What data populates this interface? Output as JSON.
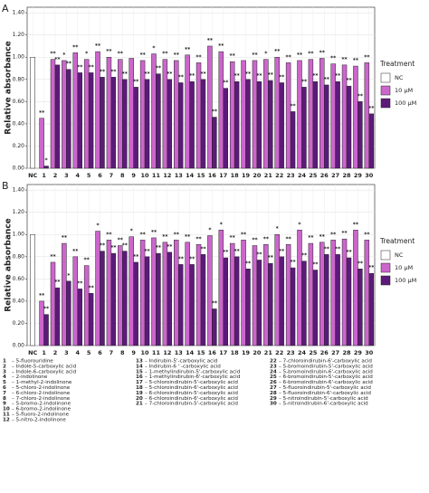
{
  "chart_data": [
    {
      "type": "bar",
      "panel": "A",
      "ylabel": "Relative absorbance",
      "legend_title": "Treatment",
      "grid": true,
      "categories": [
        "NC",
        "1",
        "2",
        "3",
        "4",
        "5",
        "6",
        "7",
        "8",
        "9",
        "10",
        "11",
        "12",
        "13",
        "14",
        "15",
        "16",
        "17",
        "18",
        "19",
        "20",
        "21",
        "22",
        "23",
        "24",
        "25",
        "26",
        "27",
        "28",
        "29",
        "30"
      ],
      "ylim": [
        0,
        1.45
      ],
      "yticks": [
        {
          "value": 0,
          "label": "0.00"
        },
        {
          "value": 0.2,
          "label": "0.20"
        },
        {
          "value": 0.4,
          "label": "0.40"
        },
        {
          "value": 0.6,
          "label": "0.60"
        },
        {
          "value": 0.8,
          "label": "0.80"
        },
        {
          "value": 1,
          "label": "1.00"
        },
        {
          "value": 1.2,
          "label": "1.20"
        },
        {
          "value": 1.4,
          "label": "1.40"
        }
      ],
      "series": [
        {
          "name": "NC",
          "color": "#ffffff",
          "values": [
            1.0,
            null,
            null,
            null,
            null,
            null,
            null,
            null,
            null,
            null,
            null,
            null,
            null,
            null,
            null,
            null,
            null,
            null,
            null,
            null,
            null,
            null,
            null,
            null,
            null,
            null,
            null,
            null,
            null,
            null,
            null
          ]
        },
        {
          "name": "10 µM",
          "color": "#cc66cc",
          "values": [
            null,
            0.45,
            0.98,
            0.97,
            1.04,
            0.98,
            1.05,
            1.0,
            0.98,
            0.99,
            0.97,
            1.03,
            0.98,
            0.97,
            1.02,
            0.95,
            1.1,
            1.05,
            0.96,
            0.97,
            0.97,
            0.98,
            1.0,
            0.95,
            0.97,
            0.98,
            0.99,
            0.94,
            0.93,
            0.92,
            0.95
          ],
          "significance": [
            null,
            "**",
            "**",
            "*",
            "**",
            "*",
            "**",
            "**",
            "**",
            null,
            "**",
            "*",
            "**",
            "**",
            "**",
            "**",
            "**",
            "**",
            "**",
            null,
            "**",
            "*",
            "**",
            "**",
            "**",
            "**",
            "**",
            "**",
            "**",
            "**",
            "**"
          ]
        },
        {
          "name": "100 µM",
          "color": "#5c1a7a",
          "values": [
            null,
            0.02,
            0.93,
            0.89,
            0.86,
            0.86,
            0.82,
            0.82,
            0.8,
            0.73,
            0.8,
            0.85,
            0.8,
            0.77,
            0.78,
            0.8,
            0.46,
            0.72,
            0.78,
            0.8,
            0.78,
            0.79,
            0.77,
            0.51,
            0.73,
            0.78,
            0.75,
            0.78,
            0.74,
            0.6,
            0.49
          ],
          "significance": [
            null,
            "*",
            "**",
            "**",
            "**",
            "**",
            "**",
            "**",
            "**",
            "**",
            "**",
            "**",
            "**",
            "**",
            "**",
            "**",
            "**",
            "**",
            "**",
            "**",
            "**",
            "**",
            "**",
            "**",
            "**",
            "**",
            "**",
            "**",
            "**",
            "**",
            "**"
          ]
        }
      ]
    },
    {
      "type": "bar",
      "panel": "B",
      "ylabel": "Relative absorbance",
      "legend_title": "Treatment",
      "grid": true,
      "categories": [
        "NC",
        "1",
        "2",
        "3",
        "4",
        "5",
        "6",
        "7",
        "8",
        "9",
        "10",
        "11",
        "12",
        "13",
        "14",
        "15",
        "16",
        "17",
        "18",
        "19",
        "20",
        "21",
        "22",
        "23",
        "24",
        "25",
        "26",
        "27",
        "28",
        "29",
        "30"
      ],
      "ylim": [
        0,
        1.45
      ],
      "yticks": [
        {
          "value": 0,
          "label": "0.00"
        },
        {
          "value": 0.2,
          "label": "0.20"
        },
        {
          "value": 0.4,
          "label": "0.40"
        },
        {
          "value": 0.6,
          "label": "0.60"
        },
        {
          "value": 0.8,
          "label": "0.80"
        },
        {
          "value": 1,
          "label": "1.00"
        },
        {
          "value": 1.2,
          "label": "1.20"
        },
        {
          "value": 1.4,
          "label": "1.40"
        }
      ],
      "series": [
        {
          "name": "NC",
          "color": "#ffffff",
          "values": [
            1.0,
            null,
            null,
            null,
            null,
            null,
            null,
            null,
            null,
            null,
            null,
            null,
            null,
            null,
            null,
            null,
            null,
            null,
            null,
            null,
            null,
            null,
            null,
            null,
            null,
            null,
            null,
            null,
            null,
            null,
            null
          ]
        },
        {
          "name": "10 µM",
          "color": "#cc66cc",
          "values": [
            null,
            0.4,
            0.75,
            0.92,
            0.8,
            0.72,
            1.03,
            0.95,
            0.9,
            0.98,
            0.95,
            0.97,
            0.93,
            0.95,
            0.93,
            0.91,
            0.99,
            1.04,
            0.92,
            0.95,
            0.9,
            0.91,
            1.0,
            0.91,
            1.04,
            0.92,
            0.93,
            0.95,
            0.96,
            1.04,
            0.95
          ],
          "significance": [
            null,
            "**",
            "**",
            "**",
            "**",
            "**",
            "*",
            "**",
            "**",
            "*",
            "**",
            "**",
            "**",
            "**",
            "**",
            "**",
            "*",
            "*",
            "**",
            "**",
            "**",
            "**",
            "*",
            "**",
            "*",
            "**",
            "**",
            "**",
            "**",
            "**",
            "**"
          ]
        },
        {
          "name": "100 µM",
          "color": "#5c1a7a",
          "values": [
            null,
            0.28,
            0.52,
            0.58,
            0.51,
            0.47,
            0.85,
            0.83,
            0.85,
            0.75,
            0.8,
            0.83,
            0.84,
            0.73,
            0.73,
            0.82,
            0.33,
            0.79,
            0.8,
            0.69,
            0.77,
            0.74,
            0.8,
            0.7,
            0.76,
            0.68,
            0.82,
            0.82,
            0.79,
            0.69,
            0.65
          ],
          "significance": [
            null,
            "**",
            "**",
            "*",
            "**",
            "**",
            "**",
            "**",
            "**",
            "**",
            "**",
            "**",
            "**",
            "**",
            "**",
            "**",
            "**",
            "**",
            "**",
            "**",
            "**",
            "**",
            "**",
            "**",
            "**",
            "**",
            "**",
            "**",
            "**",
            "**",
            "**"
          ]
        }
      ]
    }
  ],
  "compound_key": [
    {
      "number": "1",
      "name": "– 5-fluorouridine"
    },
    {
      "number": "2",
      "name": "– Indole-5-carboxylic acid"
    },
    {
      "number": "3",
      "name": "– Indole-6-carboxylic acid"
    },
    {
      "number": "4",
      "name": "– 2-indolinone"
    },
    {
      "number": "5",
      "name": "– 1-methyl-2-indolinone"
    },
    {
      "number": "6",
      "name": "– 5-chloro-2-indolinone"
    },
    {
      "number": "7",
      "name": "– 6-chloro-2-indolinone"
    },
    {
      "number": "8",
      "name": "– 7-chloro-2-indolinone"
    },
    {
      "number": "9",
      "name": "– 5-bromo-2-indolinone"
    },
    {
      "number": "10",
      "name": "– 6-bromo-2-indolinone"
    },
    {
      "number": "11",
      "name": "– 5-fluoro-2-indolinone"
    },
    {
      "number": "12",
      "name": "– 5-nitro-2-indolinone"
    },
    {
      "number": "13",
      "name": "– Indirubin-5'-carboxylic acid"
    },
    {
      "number": "14",
      "name": "– Indirubin-6 ' -carboxylic acid"
    },
    {
      "number": "15",
      "name": "– 1-methylindirubin-5'-carboxylic acid"
    },
    {
      "number": "16",
      "name": "– 1-methylindirubin-6'-carboxylic acid"
    },
    {
      "number": "17",
      "name": "– 5-chloroindirubin-5'-carboxylic acid"
    },
    {
      "number": "18",
      "name": "– 5-chloroindirubin-6'-carboxylic acid"
    },
    {
      "number": "19",
      "name": "– 6-chloroindirubin-5'-carboxylic acid"
    },
    {
      "number": "20",
      "name": "– 6-chloroindirubin-6'-carboxylic acid"
    },
    {
      "number": "21",
      "name": "– 7-chloroindirubin-5'-carboxylic acid"
    },
    {
      "number": "22",
      "name": "– 7-chloroindirubin-6'-carboxylic acid"
    },
    {
      "number": "23",
      "name": "– 5-bromoindirubin-5'-carboxylic acid"
    },
    {
      "number": "24",
      "name": "– 5-bromoindirubin-6'-carboxylic acid"
    },
    {
      "number": "25",
      "name": "– 6-bromoindirubin-5'-carboxylic acid"
    },
    {
      "number": "26",
      "name": "– 6-bromoindirubin-6'-carboxylic acid"
    },
    {
      "number": "27",
      "name": "– 5-fluoroindirubin-5'-carboxylic acid"
    },
    {
      "number": "28",
      "name": "– 5-fluoroindirubin-6'-carboxylic acid"
    },
    {
      "number": "29",
      "name": "– 5-nitroindirubin-5'-carboxylic acid"
    },
    {
      "number": "30",
      "name": "– 5-nitroindirubin-6'-carboxylic acid"
    }
  ]
}
